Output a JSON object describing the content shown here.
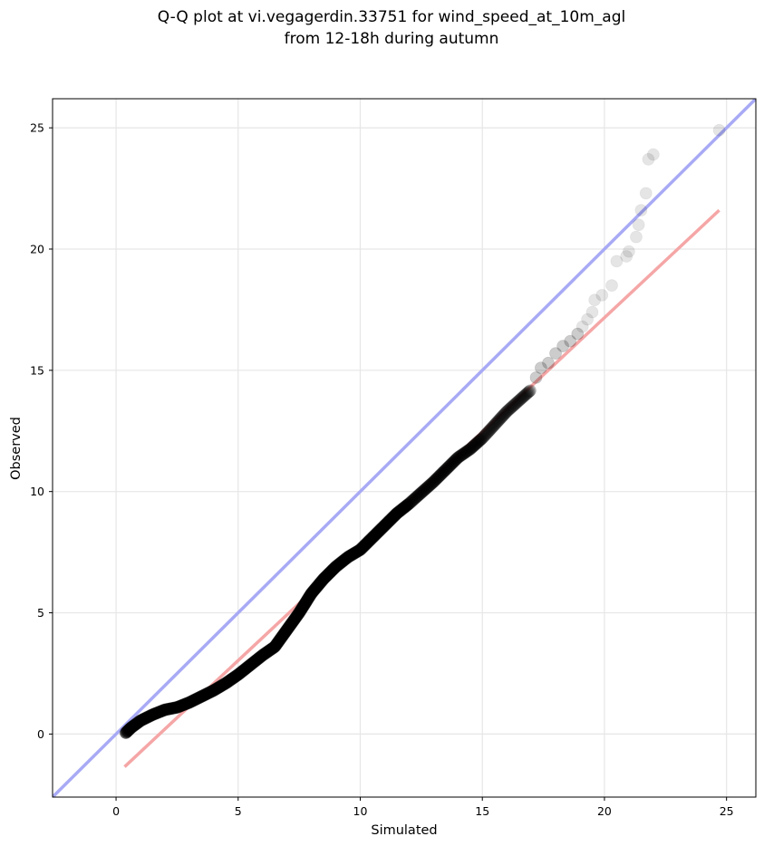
{
  "chart_data": {
    "type": "scatter",
    "title_lines": [
      "Q-Q plot at vi.vegagerdin.33751 for wind_speed_at_10m_agl",
      "from 12-18h during autumn"
    ],
    "xlabel": "Simulated",
    "ylabel": "Observed",
    "xlim": [
      -2.6,
      26.2
    ],
    "ylim": [
      -2.6,
      26.2
    ],
    "x_ticks": [
      0,
      5,
      10,
      15,
      20,
      25
    ],
    "y_ticks": [
      0,
      5,
      10,
      15,
      20,
      25
    ],
    "x_tick_labels": [
      "0",
      "5",
      "10",
      "15",
      "20",
      "25"
    ],
    "y_tick_labels": [
      "0",
      "5",
      "10",
      "15",
      "20",
      "25"
    ],
    "grid": true,
    "colors": {
      "points": "#000000",
      "identity_line": "#a8aaf5",
      "fit_line": "#f5a6a6"
    },
    "reference_lines": [
      {
        "kind": "identity",
        "x": [
          -2.6,
          26.2
        ],
        "y": [
          -2.6,
          26.2
        ],
        "color": "#a8aaf5"
      },
      {
        "kind": "fit",
        "x": [
          0.35,
          24.7
        ],
        "y": [
          -1.35,
          21.6
        ],
        "color": "#f5a6a6"
      }
    ],
    "quantile_curve": [
      [
        0.4,
        0.05
      ],
      [
        0.6,
        0.25
      ],
      [
        1.0,
        0.55
      ],
      [
        1.5,
        0.8
      ],
      [
        2.0,
        1.0
      ],
      [
        2.5,
        1.1
      ],
      [
        3.0,
        1.3
      ],
      [
        3.5,
        1.55
      ],
      [
        4.0,
        1.8
      ],
      [
        4.5,
        2.1
      ],
      [
        5.0,
        2.45
      ],
      [
        5.5,
        2.85
      ],
      [
        6.0,
        3.25
      ],
      [
        6.5,
        3.6
      ],
      [
        7.0,
        4.3
      ],
      [
        7.5,
        5.0
      ],
      [
        8.0,
        5.8
      ],
      [
        8.5,
        6.4
      ],
      [
        9.0,
        6.9
      ],
      [
        9.5,
        7.3
      ],
      [
        10.0,
        7.6
      ],
      [
        10.5,
        8.1
      ],
      [
        11.0,
        8.6
      ],
      [
        11.5,
        9.1
      ],
      [
        12.0,
        9.5
      ],
      [
        12.5,
        9.95
      ],
      [
        13.0,
        10.4
      ],
      [
        13.5,
        10.9
      ],
      [
        14.0,
        11.4
      ],
      [
        14.5,
        11.75
      ],
      [
        15.0,
        12.2
      ],
      [
        15.5,
        12.75
      ],
      [
        16.0,
        13.3
      ],
      [
        16.5,
        13.75
      ],
      [
        17.0,
        14.2
      ]
    ],
    "tail_points": [
      [
        17.2,
        14.7
      ],
      [
        17.4,
        15.1
      ],
      [
        17.7,
        15.3
      ],
      [
        18.0,
        15.7
      ],
      [
        18.3,
        16.0
      ],
      [
        18.6,
        16.2
      ],
      [
        18.9,
        16.5
      ],
      [
        19.1,
        16.8
      ],
      [
        19.3,
        17.1
      ],
      [
        19.5,
        17.4
      ],
      [
        19.6,
        17.9
      ],
      [
        19.9,
        18.1
      ],
      [
        20.3,
        18.5
      ],
      [
        20.5,
        19.5
      ],
      [
        20.9,
        19.7
      ],
      [
        21.0,
        19.9
      ],
      [
        21.3,
        20.5
      ],
      [
        21.4,
        21.0
      ],
      [
        21.5,
        21.6
      ],
      [
        21.7,
        22.3
      ],
      [
        21.8,
        23.7
      ],
      [
        22.0,
        23.9
      ],
      [
        24.7,
        24.9
      ]
    ]
  }
}
